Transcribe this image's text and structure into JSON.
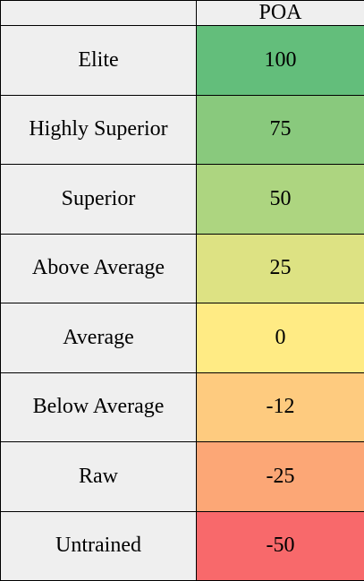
{
  "table": {
    "header": {
      "corner": "",
      "value_col": "POA"
    },
    "rows": [
      {
        "label": "Elite",
        "value": "100",
        "color": "#63be7b"
      },
      {
        "label": "Highly Superior",
        "value": "75",
        "color": "#89c97d"
      },
      {
        "label": "Superior",
        "value": "50",
        "color": "#add580"
      },
      {
        "label": "Above Average",
        "value": "25",
        "color": "#dde283"
      },
      {
        "label": "Average",
        "value": "0",
        "color": "#ffeb84"
      },
      {
        "label": "Below Average",
        "value": "-12",
        "color": "#fecb7f"
      },
      {
        "label": "Raw",
        "value": "-25",
        "color": "#fca776"
      },
      {
        "label": "Untrained",
        "value": "-50",
        "color": "#f8696b"
      }
    ]
  }
}
